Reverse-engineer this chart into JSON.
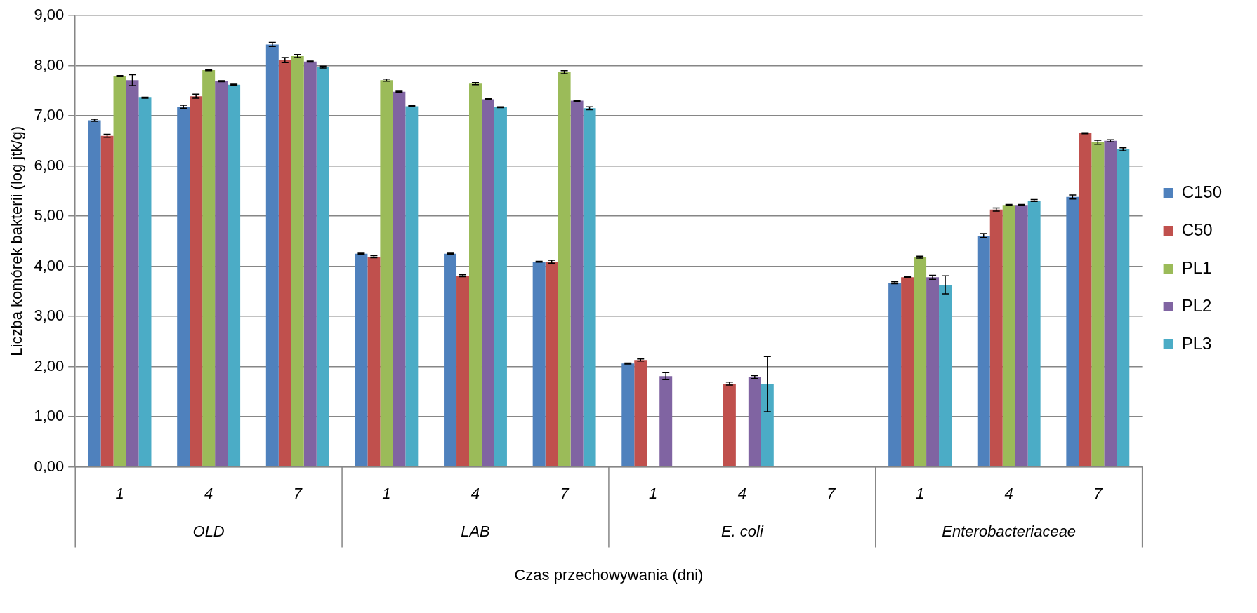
{
  "chart_data": {
    "type": "bar",
    "xlabel": "Czas przechowywania (dni)",
    "ylabel": "Liczba komórek bakterii (log jtk/g)",
    "categories": [
      "1",
      "4",
      "7",
      "1",
      "4",
      "7",
      "1",
      "4",
      "7",
      "1",
      "4",
      "7"
    ],
    "annotations": [
      "OLD",
      "LAB",
      "E. coli",
      "Enterobacteriaceae"
    ],
    "series": [
      {
        "name": "C150",
        "color": "#4f81bd",
        "values": [
          6.91,
          7.18,
          8.42,
          4.25,
          4.25,
          4.09,
          2.06,
          null,
          null,
          3.67,
          4.61,
          5.38
        ],
        "errors": [
          0.02,
          0.03,
          0.04,
          0.01,
          0.01,
          0.01,
          0.01,
          null,
          null,
          0.02,
          0.04,
          0.04
        ]
      },
      {
        "name": "C50",
        "color": "#c0504d",
        "values": [
          6.6,
          7.39,
          8.11,
          4.19,
          3.81,
          4.09,
          2.13,
          1.66,
          null,
          3.78,
          5.13,
          6.65
        ],
        "errors": [
          0.03,
          0.04,
          0.05,
          0.02,
          0.02,
          0.03,
          0.02,
          0.03,
          null,
          0.01,
          0.03,
          0.01
        ]
      },
      {
        "name": "PL1",
        "color": "#9bbb59",
        "values": [
          7.79,
          7.91,
          8.19,
          7.71,
          7.64,
          7.87,
          null,
          null,
          null,
          4.18,
          5.22,
          6.47
        ],
        "errors": [
          0.01,
          0.01,
          0.03,
          0.02,
          0.02,
          0.03,
          null,
          null,
          null,
          0.02,
          0.01,
          0.04
        ]
      },
      {
        "name": "PL2",
        "color": "#8064a2",
        "values": [
          7.71,
          7.69,
          8.08,
          7.48,
          7.33,
          7.3,
          1.81,
          1.79,
          null,
          3.78,
          5.22,
          6.5
        ],
        "errors": [
          0.11,
          0.01,
          0.01,
          0.01,
          0.01,
          0.01,
          0.07,
          0.03,
          null,
          0.04,
          0.01,
          0.02
        ]
      },
      {
        "name": "PL3",
        "color": "#4bacc6",
        "values": [
          7.36,
          7.62,
          7.97,
          7.19,
          7.17,
          7.15,
          null,
          1.65,
          null,
          3.63,
          5.31,
          6.33
        ],
        "errors": [
          0.01,
          0.01,
          0.02,
          0.01,
          0.01,
          0.03,
          null,
          0.55,
          null,
          0.18,
          0.02,
          0.03
        ]
      }
    ],
    "ylim": [
      0,
      9
    ],
    "yticks": [
      {
        "value": 0,
        "label": "0,00"
      },
      {
        "value": 1,
        "label": "1,00"
      },
      {
        "value": 2,
        "label": "2,00"
      },
      {
        "value": 3,
        "label": "3,00"
      },
      {
        "value": 4,
        "label": "4,00"
      },
      {
        "value": 5,
        "label": "5,00"
      },
      {
        "value": 6,
        "label": "6,00"
      },
      {
        "value": 7,
        "label": "7,00"
      },
      {
        "value": 8,
        "label": "8,00"
      },
      {
        "value": 9,
        "label": "9,00"
      }
    ],
    "grid": "y",
    "legend": "right"
  }
}
